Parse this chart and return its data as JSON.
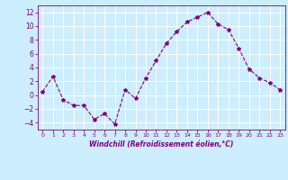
{
  "x": [
    0,
    1,
    2,
    3,
    4,
    5,
    6,
    7,
    8,
    9,
    10,
    11,
    12,
    13,
    14,
    15,
    16,
    17,
    18,
    19,
    20,
    21,
    22,
    23
  ],
  "y": [
    0.5,
    2.7,
    -0.7,
    -1.5,
    -1.5,
    -3.5,
    -2.7,
    -4.2,
    0.8,
    -0.5,
    2.5,
    5.0,
    7.5,
    9.2,
    10.6,
    11.3,
    12.0,
    10.3,
    9.5,
    6.8,
    3.8,
    2.5,
    1.8,
    0.8
  ],
  "line_color": "#800080",
  "marker": "*",
  "marker_size": 3,
  "bg_color": "#cceeff",
  "grid_color": "#ffffff",
  "xlabel": "Windchill (Refroidissement éolien,°C)",
  "xlabel_color": "#800080",
  "tick_color": "#800080",
  "ylim": [
    -5,
    13
  ],
  "xlim": [
    -0.5,
    23.5
  ],
  "yticks": [
    -4,
    -2,
    0,
    2,
    4,
    6,
    8,
    10,
    12
  ],
  "xticks": [
    0,
    1,
    2,
    3,
    4,
    5,
    6,
    7,
    8,
    9,
    10,
    11,
    12,
    13,
    14,
    15,
    16,
    17,
    18,
    19,
    20,
    21,
    22,
    23
  ],
  "figsize": [
    3.2,
    2.0
  ],
  "dpi": 100
}
